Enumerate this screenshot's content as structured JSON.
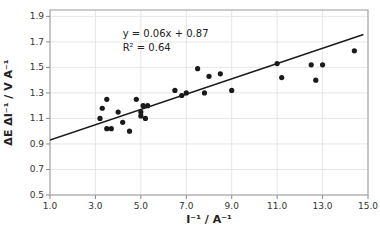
{
  "chart_data": {
    "type": "scatter",
    "xlabel": "I⁻¹ / A⁻¹",
    "ylabel": "ΔE ΔI⁻¹ / V A⁻¹",
    "xlim": [
      1.0,
      15.0
    ],
    "ylim": [
      0.5,
      1.95
    ],
    "xticks": [
      {
        "value": 1.0,
        "label": "1.0"
      },
      {
        "value": 3.0,
        "label": "3.0"
      },
      {
        "value": 5.0,
        "label": "5.0"
      },
      {
        "value": 7.0,
        "label": "7.0"
      },
      {
        "value": 9.0,
        "label": "9.0"
      },
      {
        "value": 11.0,
        "label": "11.0"
      },
      {
        "value": 13.0,
        "label": "13.0"
      },
      {
        "value": 15.0,
        "label": "15.0"
      }
    ],
    "yticks": [
      0.5,
      0.7,
      0.9,
      1.1,
      1.3,
      1.5,
      1.7,
      1.9
    ],
    "series": [
      {
        "type": "scatter",
        "color": "#1a1a1a",
        "x": [
          3.2,
          3.3,
          3.5,
          3.5,
          3.7,
          4.0,
          4.2,
          4.5,
          4.8,
          5.0,
          5.0,
          5.1,
          5.2,
          5.3,
          6.5,
          6.8,
          7.0,
          7.5,
          7.8,
          8.0,
          8.5,
          9.0,
          11.0,
          11.2,
          12.5,
          12.7,
          13.0,
          14.4
        ],
        "values": [
          1.1,
          1.18,
          1.02,
          1.25,
          1.02,
          1.15,
          1.07,
          1.0,
          1.25,
          1.12,
          1.15,
          1.2,
          1.1,
          1.2,
          1.32,
          1.28,
          1.3,
          1.49,
          1.3,
          1.43,
          1.45,
          1.32,
          1.53,
          1.42,
          1.52,
          1.4,
          1.52,
          1.63
        ]
      },
      {
        "type": "line",
        "color": "#1a1a1a",
        "x": [
          1.0,
          14.8
        ],
        "values": [
          0.93,
          1.758
        ]
      }
    ],
    "annotations": [
      {
        "x": 4.2,
        "y": 1.82,
        "text": [
          "y = 0.06x + 0.87",
          "R² = 0.64"
        ]
      }
    ]
  }
}
